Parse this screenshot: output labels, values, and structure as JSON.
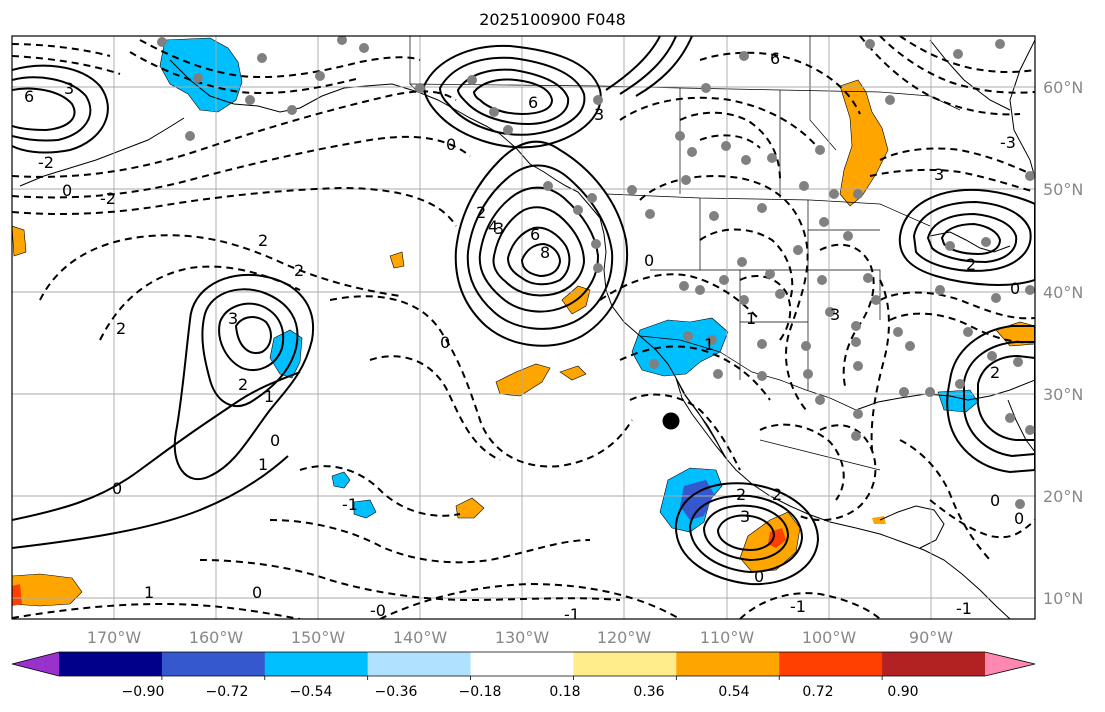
{
  "title": "2025100900 F048",
  "map": {
    "projection": "lat-lon",
    "lon_ticks": [
      "170°W",
      "160°W",
      "150°W",
      "140°W",
      "130°W",
      "120°W",
      "110°W",
      "100°W",
      "90°W"
    ],
    "lat_ticks": [
      "60°N",
      "50°N",
      "40°N",
      "30°N",
      "20°N",
      "10°N"
    ],
    "contour_labels": [
      "6",
      "3",
      "-2",
      "0",
      "-2",
      "2",
      "2",
      "3",
      "2",
      "1",
      "0",
      "2",
      "1",
      "0",
      "0",
      "1",
      "-1",
      "0",
      "-0",
      "-1",
      "-1",
      "6",
      "3",
      "0",
      "2",
      "4",
      "6",
      "8",
      "3",
      "0",
      "1",
      "6",
      "3",
      "1",
      "3",
      "2",
      "2",
      "3",
      "2",
      "-3",
      "0",
      "0",
      "2",
      "0",
      "0",
      "-1"
    ],
    "marker": "cyclone-center"
  },
  "colorbar": {
    "labels": [
      "−0.90",
      "−0.72",
      "−0.54",
      "−0.36",
      "−0.18",
      "0.18",
      "0.36",
      "0.54",
      "0.72",
      "0.90"
    ],
    "colors": [
      "#9932cc",
      "#00008b",
      "#3558cf",
      "#00bfff",
      "#b0e2ff",
      "#ffffff",
      "#ffec8b",
      "#ffa500",
      "#ff4000",
      "#b22222",
      "#ff88b0"
    ]
  }
}
